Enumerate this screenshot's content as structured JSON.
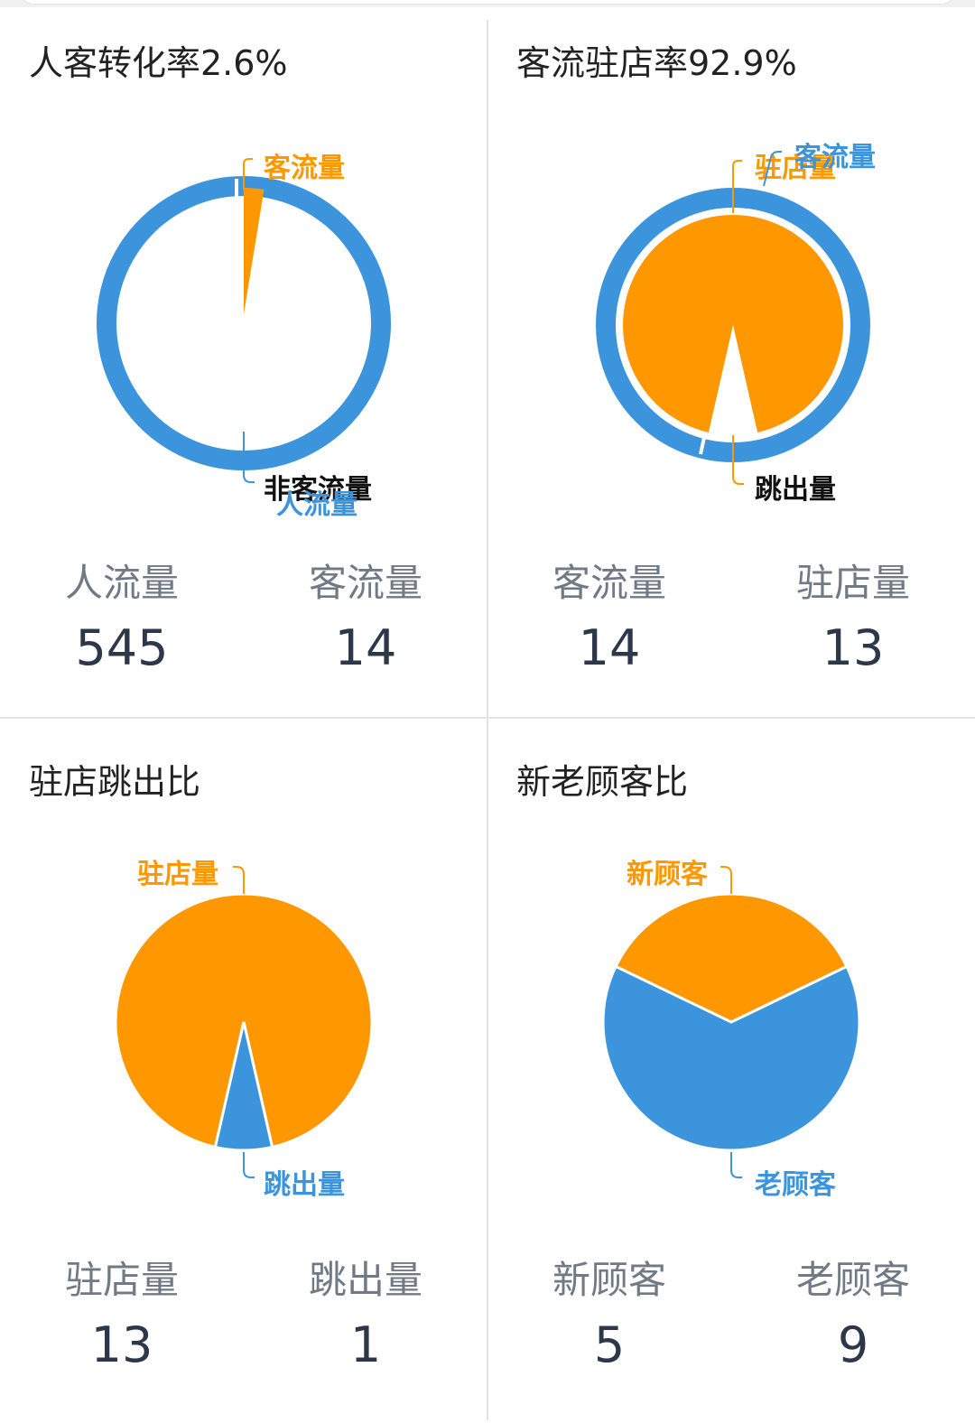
{
  "colors": {
    "orange": "#ff9800",
    "blue": "#3c95dc",
    "dark": "#111111"
  },
  "panels": [
    {
      "title": "人客转化率2.6%",
      "stats": [
        {
          "label": "人流量",
          "value": "545"
        },
        {
          "label": "客流量",
          "value": "14"
        }
      ]
    },
    {
      "title": "客流驻店率92.9%",
      "stats": [
        {
          "label": "客流量",
          "value": "14"
        },
        {
          "label": "驻店量",
          "value": "13"
        }
      ]
    },
    {
      "title": "驻店跳出比",
      "stats": [
        {
          "label": "驻店量",
          "value": "13"
        },
        {
          "label": "跳出量",
          "value": "1"
        }
      ]
    },
    {
      "title": "新老顾客比",
      "stats": [
        {
          "label": "新顾客",
          "value": "5"
        },
        {
          "label": "老顾客",
          "value": "9"
        }
      ]
    }
  ],
  "chart_data": [
    {
      "type": "pie",
      "variant": "nested-donut",
      "title": "人客转化率2.6%",
      "series": [
        {
          "name": "客流量",
          "values": [
            14
          ]
        },
        {
          "name": "非客流量",
          "values": [
            531
          ]
        },
        {
          "name": "人流量",
          "values": [
            545
          ]
        }
      ]
    },
    {
      "type": "pie",
      "variant": "nested-donut",
      "title": "客流驻店率92.9%",
      "series": [
        {
          "name": "驻店量",
          "values": [
            13
          ]
        },
        {
          "name": "跳出量",
          "values": [
            1
          ]
        },
        {
          "name": "客流量",
          "values": [
            14
          ]
        }
      ]
    },
    {
      "type": "pie",
      "title": "驻店跳出比",
      "categories": [
        "驻店量",
        "跳出量"
      ],
      "values": [
        13,
        1
      ]
    },
    {
      "type": "pie",
      "title": "新老顾客比",
      "categories": [
        "新顾客",
        "老顾客"
      ],
      "values": [
        5,
        9
      ]
    }
  ]
}
